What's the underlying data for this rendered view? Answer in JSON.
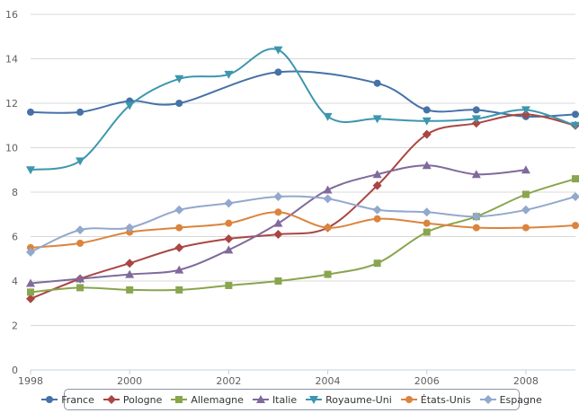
{
  "chart_data": {
    "type": "line",
    "title": "",
    "xlabel": "",
    "ylabel": "",
    "xlim": [
      1998,
      2009
    ],
    "ylim": [
      0,
      16
    ],
    "x_ticks": [
      1998,
      2000,
      2002,
      2004,
      2006,
      2008
    ],
    "y_ticks": [
      0,
      2,
      4,
      6,
      8,
      10,
      12,
      14,
      16
    ],
    "grid": "horizontal",
    "legend_position": "bottom",
    "x": [
      1998,
      1999,
      2000,
      2001,
      2002,
      2003,
      2004,
      2005,
      2006,
      2007,
      2008,
      2009
    ],
    "series": [
      {
        "name": "France",
        "color": "#4572a7",
        "marker": "circle",
        "values": [
          11.6,
          11.6,
          12.1,
          12.0,
          null,
          13.4,
          null,
          12.9,
          11.7,
          11.7,
          11.4,
          11.5
        ]
      },
      {
        "name": "Pologne",
        "color": "#aa4643",
        "marker": "diamond",
        "values": [
          3.2,
          4.1,
          4.8,
          5.5,
          5.9,
          6.1,
          6.4,
          8.3,
          10.6,
          11.1,
          11.5,
          11.0
        ]
      },
      {
        "name": "Allemagne",
        "color": "#89a54e",
        "marker": "square",
        "values": [
          3.5,
          3.7,
          3.6,
          3.6,
          3.8,
          4.0,
          4.3,
          4.8,
          6.2,
          6.9,
          7.9,
          8.6
        ]
      },
      {
        "name": "Italie",
        "color": "#80699b",
        "marker": "triangle",
        "values": [
          3.9,
          4.1,
          4.3,
          4.5,
          5.4,
          6.6,
          8.1,
          8.8,
          9.2,
          8.8,
          9.0,
          null
        ]
      },
      {
        "name": "Royaume-Uni",
        "color": "#3d96ae",
        "marker": "triangle-down",
        "values": [
          9.0,
          9.4,
          11.9,
          13.1,
          13.3,
          14.4,
          11.4,
          11.3,
          11.2,
          11.3,
          11.7,
          11.0
        ]
      },
      {
        "name": "États-Unis",
        "color": "#db843d",
        "marker": "circle",
        "values": [
          5.5,
          5.7,
          6.2,
          6.4,
          6.6,
          7.1,
          6.4,
          6.8,
          6.6,
          6.4,
          6.4,
          6.5
        ]
      },
      {
        "name": "Espagne",
        "color": "#92a8cd",
        "marker": "diamond",
        "values": [
          5.3,
          6.3,
          6.4,
          7.2,
          7.5,
          7.8,
          7.7,
          7.2,
          7.1,
          6.9,
          7.2,
          7.8
        ]
      }
    ]
  }
}
